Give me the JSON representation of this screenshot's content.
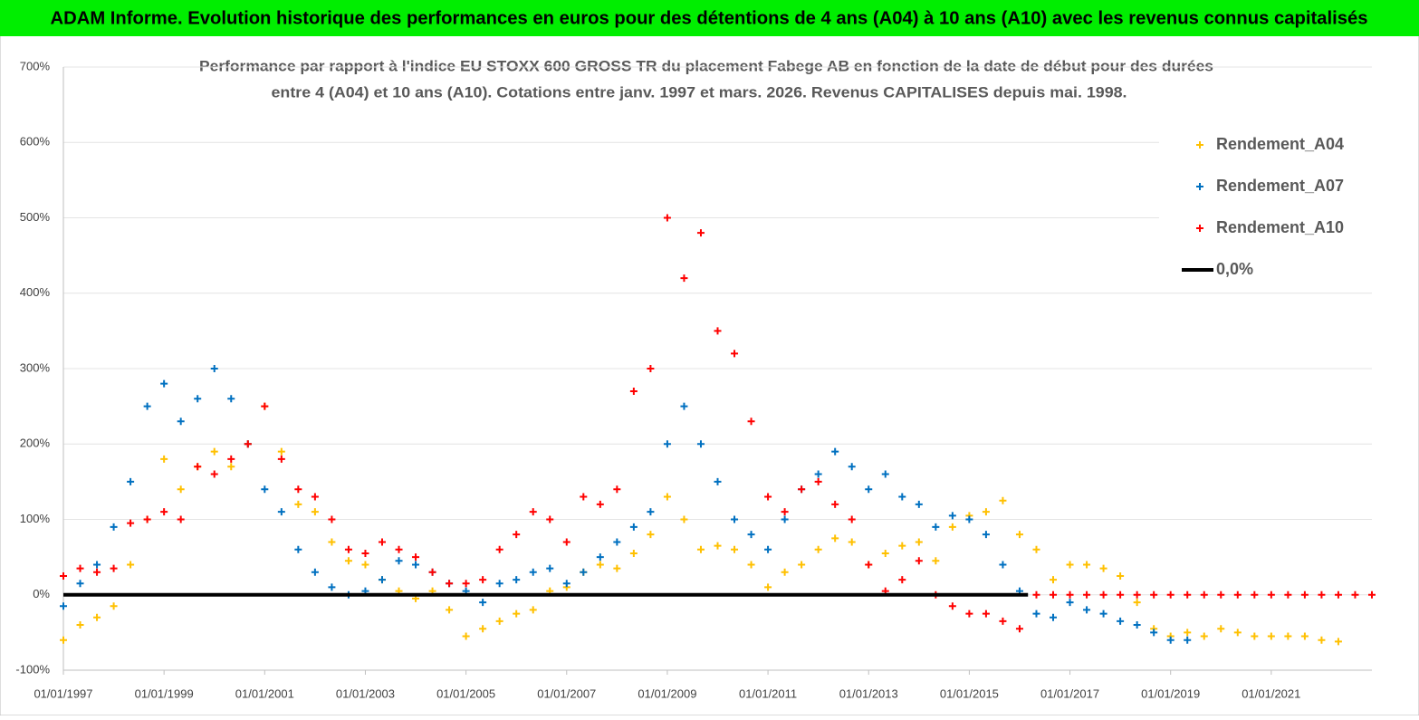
{
  "page_title": "ADAM Informe. Evolution historique des performances en euros pour des détentions de 4 ans (A04) à 10 ans (A10) avec les revenus connus capitalisés",
  "chart_data": {
    "type": "scatter",
    "title_lines": [
      "Performance par rapport à l'indice EU STOXX 600 GROSS TR  du placement Fabege AB en fonction de la date de début pour des durées",
      "entre 4 (A04) et 10 ans (A10). Cotations entre janv. 1997 et mars. 2026. Revenus CAPITALISES depuis mai. 1998."
    ],
    "xlim": [
      "01/01/1997",
      "01/01/2023"
    ],
    "xticks": [
      "01/01/1997",
      "01/01/1999",
      "01/01/2001",
      "01/01/2003",
      "01/01/2005",
      "01/01/2007",
      "01/01/2009",
      "01/01/2011",
      "01/01/2013",
      "01/01/2015",
      "01/01/2017",
      "01/01/2019",
      "01/01/2021"
    ],
    "ylim": [
      -100,
      700
    ],
    "yticks": [
      {
        "value": -100,
        "label": "-100%"
      },
      {
        "value": 0,
        "label": "0%"
      },
      {
        "value": 100,
        "label": "100%"
      },
      {
        "value": 200,
        "label": "200%"
      },
      {
        "value": 300,
        "label": "300%"
      },
      {
        "value": 400,
        "label": "400%"
      },
      {
        "value": 500,
        "label": "500%"
      },
      {
        "value": 600,
        "label": "600%"
      },
      {
        "value": 700,
        "label": "700%"
      }
    ],
    "grid": true,
    "legend": "top-right",
    "series": [
      {
        "name": "Rendement_A04",
        "color": "#ffc000",
        "style": "marker",
        "x": [
          "01/01/1997",
          "01/05/1997",
          "01/09/1997",
          "01/01/1998",
          "01/05/1998",
          "01/09/1998",
          "01/01/1999",
          "01/05/1999",
          "01/09/1999",
          "01/01/2000",
          "01/05/2000",
          "01/09/2000",
          "01/01/2001",
          "01/05/2001",
          "01/09/2001",
          "01/01/2002",
          "01/05/2002",
          "01/09/2002",
          "01/01/2003",
          "01/05/2003",
          "01/09/2003",
          "01/01/2004",
          "01/05/2004",
          "01/09/2004",
          "01/01/2005",
          "01/05/2005",
          "01/09/2005",
          "01/01/2006",
          "01/05/2006",
          "01/09/2006",
          "01/01/2007",
          "01/05/2007",
          "01/09/2007",
          "01/01/2008",
          "01/05/2008",
          "01/09/2008",
          "01/01/2009",
          "01/05/2009",
          "01/09/2009",
          "01/01/2010",
          "01/05/2010",
          "01/09/2010",
          "01/01/2011",
          "01/05/2011",
          "01/09/2011",
          "01/01/2012",
          "01/05/2012",
          "01/09/2012",
          "01/01/2013",
          "01/05/2013",
          "01/09/2013",
          "01/01/2014",
          "01/05/2014",
          "01/09/2014",
          "01/01/2015",
          "01/05/2015",
          "01/09/2015",
          "01/01/2016",
          "01/05/2016",
          "01/09/2016",
          "01/01/2017",
          "01/05/2017",
          "01/09/2017",
          "01/01/2018",
          "01/05/2018",
          "01/09/2018",
          "01/01/2019",
          "01/05/2019",
          "01/09/2019",
          "01/01/2020",
          "01/05/2020",
          "01/09/2020",
          "01/01/2021",
          "01/05/2021",
          "01/09/2021",
          "01/01/2022",
          "01/05/2022"
        ],
        "values": [
          -60,
          -40,
          -30,
          -15,
          40,
          100,
          180,
          140,
          170,
          190,
          170,
          200,
          250,
          190,
          120,
          110,
          70,
          45,
          40,
          20,
          5,
          -5,
          5,
          -20,
          -55,
          -45,
          -35,
          -25,
          -20,
          5,
          10,
          30,
          40,
          35,
          55,
          80,
          130,
          100,
          60,
          65,
          60,
          40,
          10,
          30,
          40,
          60,
          75,
          70,
          40,
          55,
          65,
          70,
          45,
          90,
          105,
          110,
          125,
          80,
          60,
          20,
          40,
          40,
          35,
          25,
          -10,
          -45,
          -55,
          -50,
          -55,
          -45,
          -50,
          -55,
          -55,
          -55,
          -55,
          -60,
          -62
        ]
      },
      {
        "name": "Rendement_A07",
        "color": "#0070c0",
        "style": "marker",
        "x": [
          "01/01/1997",
          "01/05/1997",
          "01/09/1997",
          "01/01/1998",
          "01/05/1998",
          "01/09/1998",
          "01/01/1999",
          "01/05/1999",
          "01/09/1999",
          "01/01/2000",
          "01/05/2000",
          "01/09/2000",
          "01/01/2001",
          "01/05/2001",
          "01/09/2001",
          "01/01/2002",
          "01/05/2002",
          "01/09/2002",
          "01/01/2003",
          "01/05/2003",
          "01/09/2003",
          "01/01/2004",
          "01/05/2004",
          "01/09/2004",
          "01/01/2005",
          "01/05/2005",
          "01/09/2005",
          "01/01/2006",
          "01/05/2006",
          "01/09/2006",
          "01/01/2007",
          "01/05/2007",
          "01/09/2007",
          "01/01/2008",
          "01/05/2008",
          "01/09/2008",
          "01/01/2009",
          "01/05/2009",
          "01/09/2009",
          "01/01/2010",
          "01/05/2010",
          "01/09/2010",
          "01/01/2011",
          "01/05/2011",
          "01/09/2011",
          "01/01/2012",
          "01/05/2012",
          "01/09/2012",
          "01/01/2013",
          "01/05/2013",
          "01/09/2013",
          "01/01/2014",
          "01/05/2014",
          "01/09/2014",
          "01/01/2015",
          "01/05/2015",
          "01/09/2015",
          "01/01/2016",
          "01/05/2016",
          "01/09/2016",
          "01/01/2017",
          "01/05/2017",
          "01/09/2017",
          "01/01/2018",
          "01/05/2018",
          "01/09/2018",
          "01/01/2019",
          "01/05/2019"
        ],
        "values": [
          -15,
          15,
          40,
          90,
          150,
          250,
          280,
          230,
          260,
          300,
          260,
          200,
          140,
          110,
          60,
          30,
          10,
          0,
          5,
          20,
          45,
          40,
          30,
          15,
          5,
          -10,
          15,
          20,
          30,
          35,
          15,
          30,
          50,
          70,
          90,
          110,
          200,
          250,
          200,
          150,
          100,
          80,
          60,
          100,
          140,
          160,
          190,
          170,
          140,
          160,
          130,
          120,
          90,
          105,
          100,
          80,
          40,
          5,
          -25,
          -30,
          -10,
          -20,
          -25,
          -35,
          -40,
          -50,
          -60,
          -60
        ]
      },
      {
        "name": "Rendement_A10",
        "color": "#ff0000",
        "style": "marker",
        "x": [
          "01/01/1997",
          "01/05/1997",
          "01/09/1997",
          "01/01/1998",
          "01/05/1998",
          "01/09/1998",
          "01/01/1999",
          "01/05/1999",
          "01/09/1999",
          "01/01/2000",
          "01/05/2000",
          "01/09/2000",
          "01/01/2001",
          "01/05/2001",
          "01/09/2001",
          "01/01/2002",
          "01/05/2002",
          "01/09/2002",
          "01/01/2003",
          "01/05/2003",
          "01/09/2003",
          "01/01/2004",
          "01/05/2004",
          "01/09/2004",
          "01/01/2005",
          "01/05/2005",
          "01/09/2005",
          "01/01/2006",
          "01/05/2006",
          "01/09/2006",
          "01/01/2007",
          "01/05/2007",
          "01/09/2007",
          "01/01/2008",
          "01/05/2008",
          "01/09/2008",
          "01/01/2009",
          "01/05/2009",
          "01/09/2009",
          "01/01/2010",
          "01/05/2010",
          "01/09/2010",
          "01/01/2011",
          "01/05/2011",
          "01/09/2011",
          "01/01/2012",
          "01/05/2012",
          "01/09/2012",
          "01/01/2013",
          "01/05/2013",
          "01/09/2013",
          "01/01/2014",
          "01/05/2014",
          "01/09/2014",
          "01/01/2015",
          "01/05/2015",
          "01/09/2015",
          "01/01/2016",
          "01/05/2016",
          "01/09/2016",
          "01/01/2017",
          "01/05/2017",
          "01/09/2017",
          "01/01/2018",
          "01/05/2018",
          "01/09/2018",
          "01/01/2019",
          "01/05/2019",
          "01/09/2019",
          "01/01/2020",
          "01/05/2020",
          "01/09/2020",
          "01/01/2021",
          "01/05/2021",
          "01/09/2021",
          "01/01/2022",
          "01/05/2022",
          "01/09/2022",
          "01/01/2023"
        ],
        "values": [
          25,
          35,
          30,
          35,
          95,
          100,
          110,
          100,
          170,
          160,
          180,
          200,
          250,
          180,
          140,
          130,
          100,
          60,
          55,
          70,
          60,
          50,
          30,
          15,
          15,
          20,
          60,
          80,
          110,
          100,
          70,
          130,
          120,
          140,
          270,
          300,
          500,
          420,
          480,
          350,
          320,
          230,
          130,
          110,
          140,
          150,
          120,
          100,
          40,
          5,
          20,
          45,
          0,
          -15,
          -25,
          -25,
          -35,
          -45,
          0,
          0,
          0,
          0,
          0,
          0,
          0,
          0,
          0,
          0,
          0,
          0,
          0,
          0,
          0,
          0,
          0,
          0,
          0,
          0,
          0
        ]
      },
      {
        "name": "0,0%",
        "color": "#000000",
        "style": "line",
        "x": [
          "01/01/1997",
          "01/03/2016"
        ],
        "values": [
          0,
          0
        ]
      }
    ]
  }
}
